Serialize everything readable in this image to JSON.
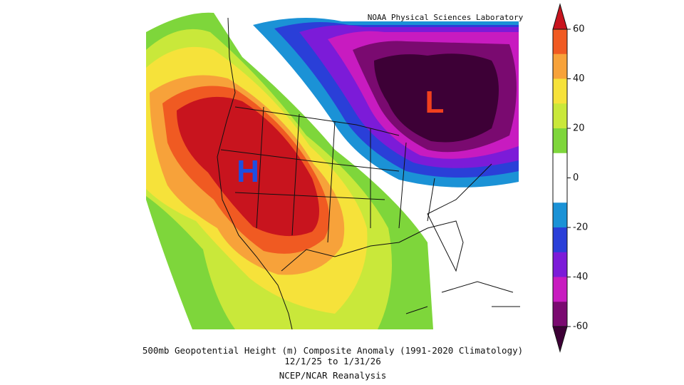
{
  "header": {
    "credit": "NOAA Physical Sciences Laboratory"
  },
  "map": {
    "high_label": "H",
    "low_label": "L"
  },
  "colorbar": {
    "ticks": [
      60,
      40,
      20,
      0,
      -20,
      -40,
      -60
    ],
    "top_color": "#c8141e",
    "bottom_color": "#3d0036",
    "colors": [
      "#f05a22",
      "#f7a23a",
      "#f6e23a",
      "#c9e83a",
      "#7ed63b",
      "#ffffff",
      "#ffffff",
      "#1b92d6",
      "#2a3fd8",
      "#7c1bd8",
      "#c81bc0",
      "#7a0a70"
    ]
  },
  "caption": {
    "line1": "500mb Geopotential Height (m) Composite Anomaly (1991-2020 Climatology)",
    "line2": "12/1/25  to 1/31/26",
    "line3": "NCEP/NCAR Reanalysis"
  }
}
